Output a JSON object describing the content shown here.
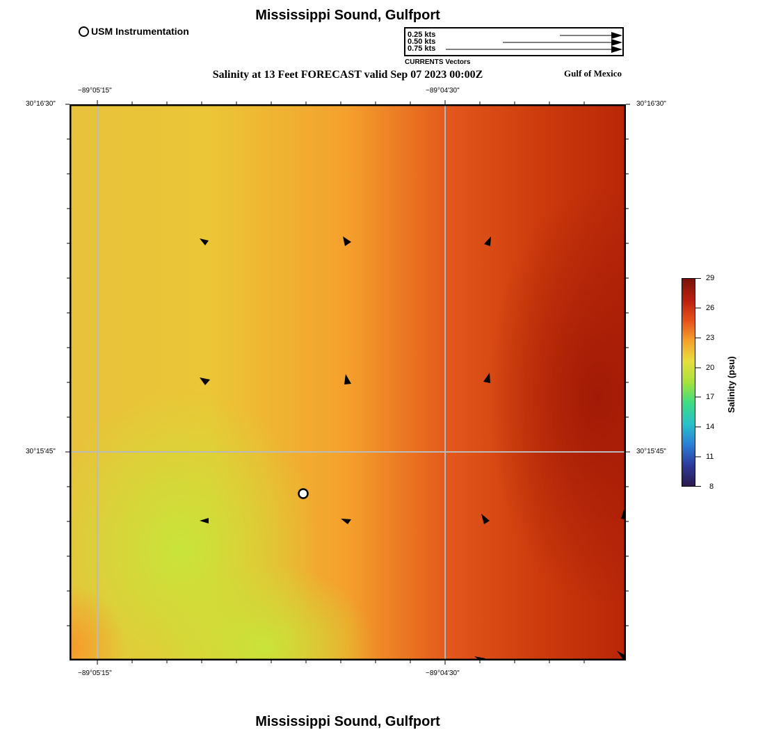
{
  "header": {
    "title": "Mississippi Sound, Gulfport",
    "subtitle": "Salinity at 13 Feet FORECAST valid Sep 07 2023 00:00Z",
    "gulf_label": "Gulf of Mexico"
  },
  "footer": {
    "title": "Mississippi Sound, Gulfport"
  },
  "legend": {
    "station_label": "USM Instrumentation",
    "vectors": [
      {
        "label": "0.25 kts",
        "speed_kts": 0.25
      },
      {
        "label": "0.50 kts",
        "speed_kts": 0.5
      },
      {
        "label": "0.75 kts",
        "speed_kts": 0.75
      }
    ],
    "vectors_caption": "CURRENTS Vectors"
  },
  "map": {
    "lon_labels": [
      "−89°05'15\"",
      "−89°04'30\""
    ],
    "lat_labels": [
      "30°16'30\"",
      "30°15'45\""
    ],
    "grid": true,
    "station": {
      "name": "USM Instrumentation"
    }
  },
  "colorbar": {
    "title": "Salinity (psu)",
    "ticks": [
      "29",
      "26",
      "23",
      "20",
      "17",
      "14",
      "11",
      "8"
    ],
    "min": 8,
    "max": 29,
    "colors": [
      "#2b1a4e",
      "#2e3a9a",
      "#2a7fd6",
      "#27c2c9",
      "#3ddc84",
      "#a6e23a",
      "#e6e03a",
      "#f5a22a",
      "#e4501a",
      "#b8200e",
      "#7a1208"
    ]
  },
  "colors": {
    "field_low": "#c9e43a",
    "field_mid": "#f4a32d",
    "field_high": "#a81e06",
    "grid_line": "#bbbbbb"
  }
}
